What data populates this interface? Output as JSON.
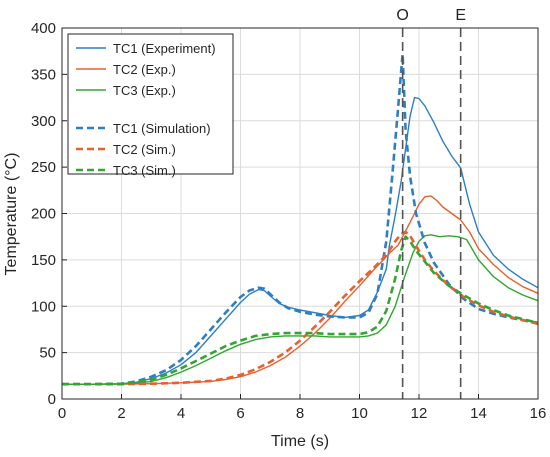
{
  "chart_data": {
    "type": "line",
    "xlabel": "Time (s)",
    "ylabel": "Temperature (°C)",
    "xlim": [
      0,
      16
    ],
    "ylim": [
      0,
      400
    ],
    "xticks": [
      0,
      2,
      4,
      6,
      8,
      10,
      12,
      14,
      16
    ],
    "yticks": [
      0,
      50,
      100,
      150,
      200,
      250,
      300,
      350,
      400
    ],
    "grid": true,
    "legend_position": "top-left",
    "vlines": [
      {
        "x": 11.45,
        "label": "O"
      },
      {
        "x": 13.4,
        "label": "E"
      }
    ],
    "series": [
      {
        "name": "TC1 (Experiment)",
        "color": "#2f7ec4",
        "dash": "solid",
        "x": [
          0,
          1,
          2,
          2.5,
          3,
          3.5,
          4,
          4.5,
          5,
          5.5,
          6,
          6.3,
          6.6,
          6.8,
          7,
          7.3,
          7.6,
          8,
          8.5,
          9,
          9.5,
          10,
          10.3,
          10.6,
          10.9,
          11,
          11.2,
          11.4,
          11.55,
          11.7,
          11.85,
          12,
          12.2,
          12.5,
          12.8,
          13.1,
          13.4,
          13.7,
          14,
          14.5,
          15,
          15.5,
          16
        ],
        "y": [
          16,
          16,
          16.5,
          18,
          22,
          28,
          37,
          50,
          68,
          86,
          104,
          113,
          118,
          117,
          111,
          103,
          99,
          96,
          93,
          90,
          88,
          90,
          96,
          115,
          140,
          165,
          198,
          235,
          270,
          305,
          325,
          324,
          316,
          298,
          278,
          262,
          249,
          210,
          180,
          155,
          140,
          129,
          120
        ]
      },
      {
        "name": "TC2 (Exp.)",
        "color": "#e8602c",
        "dash": "solid",
        "x": [
          0,
          2,
          3,
          4,
          5,
          5.5,
          6,
          6.5,
          7,
          7.5,
          8,
          8.5,
          9,
          9.5,
          10,
          10.5,
          10.8,
          11,
          11.3,
          11.5,
          11.8,
          12,
          12.2,
          12.4,
          12.6,
          12.8,
          13.1,
          13.4,
          13.7,
          14,
          14.5,
          15,
          15.5,
          16
        ],
        "y": [
          16,
          16,
          16.5,
          17.5,
          19,
          21,
          24,
          29,
          36,
          45,
          57,
          71,
          87,
          105,
          122,
          140,
          150,
          157,
          166,
          178,
          197,
          210,
          218,
          219,
          214,
          207,
          200,
          193,
          180,
          162,
          145,
          131,
          121,
          114
        ]
      },
      {
        "name": "TC3 (Exp.)",
        "color": "#33a532",
        "dash": "solid",
        "x": [
          0,
          1,
          2,
          2.5,
          3,
          3.5,
          4,
          4.5,
          5,
          5.5,
          6,
          6.5,
          7,
          7.5,
          8,
          8.5,
          9,
          9.5,
          10,
          10.3,
          10.6,
          10.9,
          11.2,
          11.5,
          11.8,
          12,
          12.2,
          12.4,
          12.7,
          13,
          13.3,
          13.6,
          14,
          14.5,
          15,
          15.5,
          16
        ],
        "y": [
          16,
          16,
          16.3,
          17,
          19,
          23,
          29,
          36,
          44,
          52,
          59,
          64,
          67,
          68,
          68,
          68,
          67,
          67,
          67,
          68,
          71,
          80,
          100,
          130,
          158,
          170,
          176,
          177,
          175,
          176,
          175,
          172,
          150,
          132,
          120,
          112,
          106
        ]
      },
      {
        "name": "TC1 (Simulation)",
        "color": "#2f7ec4",
        "dash": "dashed",
        "x": [
          0,
          1,
          2,
          2.5,
          3,
          3.5,
          4,
          4.5,
          5,
          5.5,
          6,
          6.3,
          6.6,
          6.8,
          7,
          7.3,
          7.6,
          8,
          8.5,
          9,
          9.5,
          10,
          10.3,
          10.6,
          10.9,
          11.1,
          11.3,
          11.45,
          11.55,
          11.7,
          11.9,
          12.2,
          12.5,
          13,
          13.5,
          14,
          14.5,
          15,
          15.5,
          16
        ],
        "y": [
          16,
          16,
          16.5,
          19,
          24,
          31,
          42,
          57,
          75,
          93,
          110,
          117,
          120,
          119,
          113,
          104,
          98,
          94,
          91,
          89,
          88,
          88,
          93,
          113,
          170,
          240,
          315,
          372,
          290,
          240,
          200,
          168,
          147,
          124,
          108,
          97,
          92,
          88,
          85,
          82
        ]
      },
      {
        "name": "TC2 (Sim.)",
        "color": "#e8602c",
        "dash": "dashed",
        "x": [
          0,
          2,
          3,
          4,
          5,
          5.5,
          6,
          6.5,
          7,
          7.5,
          8,
          8.5,
          9,
          9.5,
          10,
          10.5,
          10.8,
          11,
          11.2,
          11.4,
          11.55,
          11.7,
          11.9,
          12.2,
          12.5,
          13,
          13.5,
          14,
          14.5,
          15,
          15.5,
          16
        ],
        "y": [
          16,
          16,
          16.5,
          17.5,
          19.5,
          22,
          26,
          32,
          40,
          50,
          63,
          78,
          94,
          111,
          127,
          142,
          152,
          160,
          170,
          178,
          180,
          176,
          165,
          150,
          138,
          122,
          110,
          101,
          94,
          89,
          85,
          81
        ]
      },
      {
        "name": "TC3 (Sim.)",
        "color": "#33a532",
        "dash": "dashed",
        "x": [
          0,
          1,
          2,
          2.5,
          3,
          3.5,
          4,
          4.5,
          5,
          5.5,
          6,
          6.5,
          7,
          7.5,
          8,
          8.5,
          9,
          9.5,
          10,
          10.3,
          10.6,
          10.9,
          11.2,
          11.4,
          11.55,
          11.7,
          11.9,
          12.2,
          12.5,
          13,
          13.5,
          14,
          14.5,
          15,
          15.5,
          16
        ],
        "y": [
          16,
          16,
          16.5,
          18,
          21,
          26,
          33,
          41,
          49,
          57,
          63,
          68,
          70,
          71,
          71,
          71,
          70,
          70,
          70,
          72,
          78,
          95,
          130,
          160,
          175,
          170,
          160,
          148,
          136,
          122,
          112,
          103,
          96,
          90,
          86,
          82
        ]
      }
    ]
  }
}
